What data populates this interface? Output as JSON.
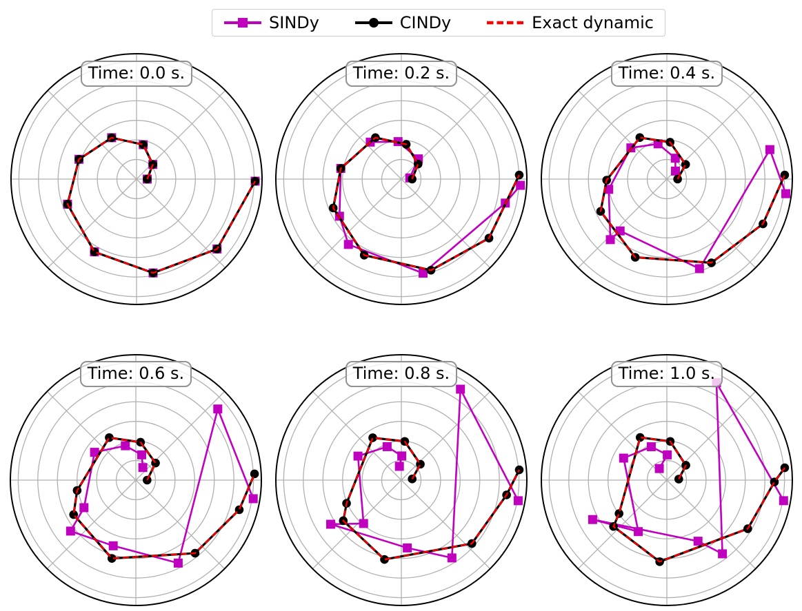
{
  "legend": {
    "items": [
      {
        "label": "SINDy",
        "color": "#BF00BF",
        "marker": "square",
        "line": "solid"
      },
      {
        "label": "CINDy",
        "color": "#000000",
        "marker": "circle",
        "line": "solid"
      },
      {
        "label": "Exact dynamic",
        "color": "#FF0000",
        "marker": "none",
        "line": "dashed"
      }
    ]
  },
  "style": {
    "sindy_color": "#BF00BF",
    "cindy_color": "#000000",
    "exact_color": "#FF0000",
    "grid_color": "#b0b0b0",
    "edge_color": "#000000",
    "badge_border_color": "#919191"
  },
  "chart_data": [
    {
      "type": "line",
      "projection": "polar",
      "title": "Time: 0.0 s.",
      "theta_unit": "degrees",
      "r_range": [
        0,
        1.28
      ],
      "r_gridlines": [
        0.2,
        0.4,
        0.6,
        0.8,
        1.0,
        1.2
      ],
      "theta_gridlines_deg": [
        0,
        45,
        90,
        135,
        180,
        225,
        270,
        315
      ],
      "legend_position": "figure-top",
      "series": [
        {
          "name": "SINDy",
          "points_theta_r": [
            [
              0,
              0.109
            ],
            [
              42,
              0.224
            ],
            [
              79,
              0.358
            ],
            [
              121,
              0.493
            ],
            [
              161,
              0.621
            ],
            [
              200,
              0.749
            ],
            [
              240,
              0.858
            ],
            [
              280,
              0.973
            ],
            [
              319,
              1.088
            ],
            [
              359,
              1.21
            ]
          ]
        },
        {
          "name": "CINDy",
          "points_theta_r": [
            [
              0,
              0.109
            ],
            [
              42,
              0.224
            ],
            [
              79,
              0.358
            ],
            [
              121,
              0.493
            ],
            [
              161,
              0.621
            ],
            [
              200,
              0.749
            ],
            [
              240,
              0.858
            ],
            [
              280,
              0.973
            ],
            [
              319,
              1.088
            ],
            [
              359,
              1.21
            ]
          ]
        },
        {
          "name": "Exact dynamic",
          "points_theta_r": [
            [
              0,
              0.109
            ],
            [
              42,
              0.224
            ],
            [
              79,
              0.358
            ],
            [
              121,
              0.493
            ],
            [
              161,
              0.621
            ],
            [
              200,
              0.749
            ],
            [
              240,
              0.858
            ],
            [
              280,
              0.973
            ],
            [
              319,
              1.088
            ],
            [
              359,
              1.21
            ]
          ]
        }
      ]
    },
    {
      "type": "line",
      "projection": "polar",
      "title": "Time: 0.2 s.",
      "theta_unit": "degrees",
      "r_range": [
        0,
        1.28
      ],
      "r_gridlines": [
        0.2,
        0.4,
        0.6,
        0.8,
        1.0,
        1.2
      ],
      "theta_gridlines_deg": [
        0,
        45,
        90,
        135,
        180,
        225,
        270,
        315
      ],
      "series": [
        {
          "name": "SINDy",
          "points_theta_r": [
            [
              8,
              0.087
            ],
            [
              50,
              0.27
            ],
            [
              95,
              0.384
            ],
            [
              130,
              0.493
            ],
            [
              170,
              0.627
            ],
            [
              211,
              0.736
            ],
            [
              231,
              0.858
            ],
            [
              283,
              0.986
            ],
            [
              347,
              1.088
            ],
            [
              357,
              1.216
            ]
          ]
        },
        {
          "name": "CINDy",
          "points_theta_r": [
            [
              0,
              0.11
            ],
            [
              42,
              0.23
            ],
            [
              82,
              0.358
            ],
            [
              122,
              0.499
            ],
            [
              170,
              0.627
            ],
            [
              203,
              0.755
            ],
            [
              244,
              0.864
            ],
            [
              288,
              0.978
            ],
            [
              326,
              1.078
            ],
            [
              2,
              1.203
            ]
          ]
        },
        {
          "name": "Exact dynamic",
          "points_theta_r": [
            [
              0,
              0.11
            ],
            [
              42,
              0.23
            ],
            [
              82,
              0.358
            ],
            [
              122,
              0.499
            ],
            [
              170,
              0.627
            ],
            [
              203,
              0.755
            ],
            [
              244,
              0.864
            ],
            [
              288,
              0.978
            ],
            [
              326,
              1.078
            ],
            [
              2,
              1.203
            ]
          ]
        }
      ]
    },
    {
      "type": "line",
      "projection": "polar",
      "title": "Time: 0.4 s.",
      "theta_unit": "degrees",
      "r_range": [
        0,
        1.28
      ],
      "r_gridlines": [
        0.2,
        0.4,
        0.6,
        0.8,
        1.0,
        1.2
      ],
      "theta_gridlines_deg": [
        0,
        45,
        90,
        135,
        180,
        225,
        270,
        315
      ],
      "series": [
        {
          "name": "SINDy",
          "points_theta_r": [
            [
              43,
              0.12
            ],
            [
              68,
              0.23
            ],
            [
              104,
              0.371
            ],
            [
              139,
              0.486
            ],
            [
              190,
              0.602
            ],
            [
              227,
              0.845
            ],
            [
              228,
              0.712
            ],
            [
              290,
              0.973
            ],
            [
              16,
              1.093
            ],
            [
              353,
              1.222
            ]
          ]
        },
        {
          "name": "CINDy",
          "points_theta_r": [
            [
              0,
              0.11
            ],
            [
              38,
              0.243
            ],
            [
              85,
              0.378
            ],
            [
              123,
              0.506
            ],
            [
              181,
              0.614
            ],
            [
              206,
              0.751
            ],
            [
              248,
              0.861
            ],
            [
              298,
              0.968
            ],
            [
              335,
              1.082
            ],
            [
              2,
              1.203
            ]
          ]
        },
        {
          "name": "Exact dynamic",
          "points_theta_r": [
            [
              0,
              0.11
            ],
            [
              38,
              0.243
            ],
            [
              85,
              0.378
            ],
            [
              123,
              0.506
            ],
            [
              181,
              0.614
            ],
            [
              206,
              0.751
            ],
            [
              248,
              0.861
            ],
            [
              298,
              0.968
            ],
            [
              335,
              1.082
            ],
            [
              2,
              1.203
            ]
          ]
        }
      ]
    },
    {
      "type": "line",
      "projection": "polar",
      "title": "Time: 0.6 s.",
      "theta_unit": "degrees",
      "r_range": [
        0,
        1.28
      ],
      "r_gridlines": [
        0.2,
        0.4,
        0.6,
        0.8,
        1.0,
        1.2
      ],
      "theta_gridlines_deg": [
        0,
        45,
        90,
        135,
        180,
        225,
        270,
        315
      ],
      "series": [
        {
          "name": "SINDy",
          "points_theta_r": [
            [
              61,
              0.147
            ],
            [
              77,
              0.265
            ],
            [
              107,
              0.367
            ],
            [
              146,
              0.508
            ],
            [
              208,
              0.599
            ],
            [
              218,
              0.845
            ],
            [
              251,
              0.709
            ],
            [
              297,
              0.951
            ],
            [
              41,
              1.107
            ],
            [
              351,
              1.212
            ]
          ]
        },
        {
          "name": "CINDy",
          "points_theta_r": [
            [
              0,
              0.115
            ],
            [
              41,
              0.266
            ],
            [
              83,
              0.39
            ],
            [
              122,
              0.512
            ],
            [
              190,
              0.608
            ],
            [
              209,
              0.726
            ],
            [
              253,
              0.836
            ],
            [
              309,
              0.96
            ],
            [
              344,
              1.097
            ],
            [
              3,
              1.212
            ]
          ]
        },
        {
          "name": "Exact dynamic",
          "points_theta_r": [
            [
              0,
              0.115
            ],
            [
              41,
              0.266
            ],
            [
              83,
              0.39
            ],
            [
              122,
              0.512
            ],
            [
              190,
              0.608
            ],
            [
              209,
              0.726
            ],
            [
              253,
              0.836
            ],
            [
              309,
              0.96
            ],
            [
              344,
              1.097
            ],
            [
              3,
              1.212
            ]
          ]
        }
      ]
    },
    {
      "type": "line",
      "projection": "polar",
      "title": "Time: 0.8 s.",
      "theta_unit": "degrees",
      "r_range": [
        0,
        1.28
      ],
      "r_gridlines": [
        0.2,
        0.4,
        0.6,
        0.8,
        1.0,
        1.2
      ],
      "theta_gridlines_deg": [
        0,
        45,
        90,
        135,
        180,
        225,
        270,
        315
      ],
      "series": [
        {
          "name": "SINDy",
          "points_theta_r": [
            [
              98,
              0.142
            ],
            [
              89,
              0.247
            ],
            [
              113,
              0.371
            ],
            [
              151,
              0.506
            ],
            [
              229,
              0.587
            ],
            [
              212,
              0.85
            ],
            [
              275,
              0.695
            ],
            [
              303,
              0.947
            ],
            [
              57,
              1.107
            ],
            [
              350,
              1.21
            ]
          ]
        },
        {
          "name": "CINDy",
          "points_theta_r": [
            [
              6,
              0.111
            ],
            [
              40,
              0.253
            ],
            [
              85,
              0.397
            ],
            [
              124,
              0.522
            ],
            [
              203,
              0.607
            ],
            [
              215,
              0.723
            ],
            [
              258,
              0.828
            ],
            [
              318,
              0.968
            ],
            [
              352,
              1.084
            ],
            [
              5,
              1.207
            ]
          ]
        },
        {
          "name": "Exact dynamic",
          "points_theta_r": [
            [
              6,
              0.111
            ],
            [
              40,
              0.253
            ],
            [
              85,
              0.397
            ],
            [
              124,
              0.522
            ],
            [
              203,
              0.607
            ],
            [
              215,
              0.723
            ],
            [
              258,
              0.828
            ],
            [
              318,
              0.968
            ],
            [
              352,
              1.084
            ],
            [
              5,
              1.207
            ]
          ]
        }
      ]
    },
    {
      "type": "line",
      "projection": "polar",
      "title": "Time: 1.0 s.",
      "theta_unit": "degrees",
      "r_range": [
        0,
        1.28
      ],
      "r_gridlines": [
        0.2,
        0.4,
        0.6,
        0.8,
        1.0,
        1.2
      ],
      "theta_gridlines_deg": [
        0,
        45,
        90,
        135,
        180,
        225,
        270,
        315
      ],
      "series": [
        {
          "name": "SINDy",
          "points_theta_r": [
            [
              123,
              0.141
            ],
            [
              89,
              0.258
            ],
            [
              115,
              0.376
            ],
            [
              153,
              0.495
            ],
            [
              241,
              0.601
            ],
            [
              208,
              0.857
            ],
            [
              297,
              0.7
            ],
            [
              307,
              0.942
            ],
            [
              63,
              1.116
            ],
            [
              350,
              1.209
            ]
          ]
        },
        {
          "name": "CINDy",
          "points_theta_r": [
            [
              5,
              0.122
            ],
            [
              38,
              0.246
            ],
            [
              85,
              0.397
            ],
            [
              122,
              0.514
            ],
            [
              215,
              0.595
            ],
            [
              221,
              0.721
            ],
            [
              265,
              0.836
            ],
            [
              329,
              0.963
            ],
            [
              359,
              1.097
            ],
            [
              6,
              1.209
            ]
          ]
        },
        {
          "name": "Exact dynamic",
          "points_theta_r": [
            [
              5,
              0.122
            ],
            [
              38,
              0.246
            ],
            [
              85,
              0.397
            ],
            [
              122,
              0.514
            ],
            [
              215,
              0.595
            ],
            [
              221,
              0.721
            ],
            [
              265,
              0.836
            ],
            [
              329,
              0.963
            ],
            [
              359,
              1.097
            ],
            [
              6,
              1.209
            ]
          ]
        }
      ]
    }
  ]
}
